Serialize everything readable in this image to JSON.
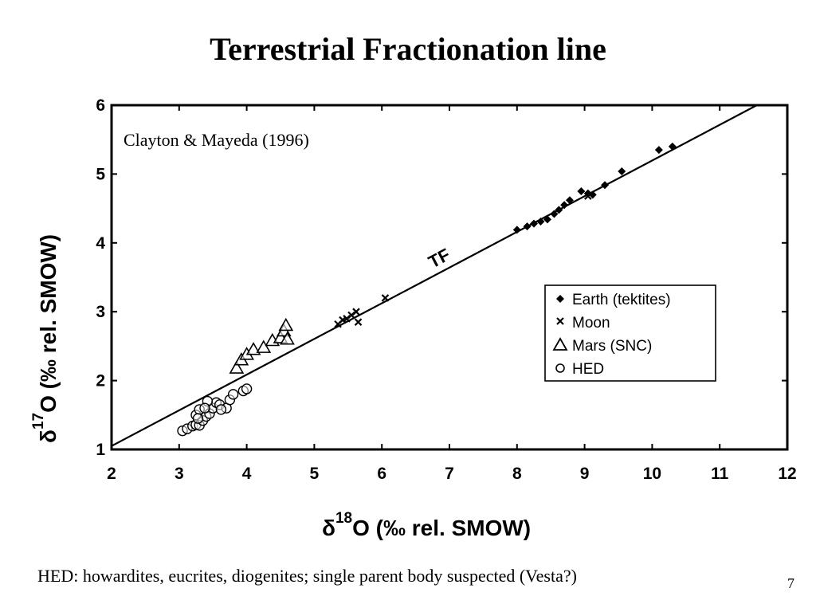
{
  "slide": {
    "title": "Terrestrial Fractionation line",
    "footnote": "HED: howardites, eucrites, diogenites; single parent body suspected (Vesta?)",
    "page_number": "7"
  },
  "chart_data": {
    "type": "scatter",
    "title": "",
    "annotation": "Clayton & Mayeda (1996)",
    "line_label": "TF",
    "xlabel": {
      "prefix": "δ",
      "sup": "18",
      "rest": "O (‰ rel. SMOW)"
    },
    "ylabel": {
      "prefix": "δ",
      "sup": "17",
      "rest": "O (‰ rel. SMOW)"
    },
    "xlim": [
      2,
      12
    ],
    "ylim": [
      1,
      6
    ],
    "xticks": [
      2,
      3,
      4,
      5,
      6,
      7,
      8,
      9,
      10,
      11,
      12
    ],
    "yticks": [
      1,
      2,
      3,
      4,
      5,
      6
    ],
    "grid": false,
    "legend_position": "right",
    "reference_line": {
      "name": "TF",
      "points": [
        [
          2,
          1.05
        ],
        [
          11.55,
          6
        ]
      ]
    },
    "series": [
      {
        "name": "Earth (tektites)",
        "marker": "diamond",
        "points": [
          [
            8.0,
            4.19
          ],
          [
            8.15,
            4.24
          ],
          [
            8.25,
            4.28
          ],
          [
            8.35,
            4.31
          ],
          [
            8.45,
            4.34
          ],
          [
            8.55,
            4.42
          ],
          [
            8.62,
            4.48
          ],
          [
            8.7,
            4.55
          ],
          [
            8.78,
            4.62
          ],
          [
            8.95,
            4.75
          ],
          [
            9.05,
            4.72
          ],
          [
            9.12,
            4.7
          ],
          [
            9.3,
            4.84
          ],
          [
            9.55,
            5.04
          ],
          [
            10.1,
            5.35
          ],
          [
            10.3,
            5.4
          ]
        ]
      },
      {
        "name": "Moon",
        "marker": "x",
        "points": [
          [
            5.35,
            2.82
          ],
          [
            5.42,
            2.88
          ],
          [
            5.48,
            2.9
          ],
          [
            5.55,
            2.95
          ],
          [
            5.62,
            3.0
          ],
          [
            5.65,
            2.85
          ],
          [
            6.05,
            3.2
          ],
          [
            9.05,
            4.68
          ]
        ]
      },
      {
        "name": "Mars (SNC)",
        "marker": "triangle",
        "points": [
          [
            3.85,
            2.18
          ],
          [
            3.92,
            2.3
          ],
          [
            4.0,
            2.38
          ],
          [
            4.1,
            2.45
          ],
          [
            4.25,
            2.48
          ],
          [
            4.38,
            2.58
          ],
          [
            4.5,
            2.62
          ],
          [
            4.55,
            2.72
          ],
          [
            4.58,
            2.8
          ],
          [
            4.6,
            2.6
          ]
        ]
      },
      {
        "name": "HED",
        "marker": "circle",
        "points": [
          [
            3.05,
            1.27
          ],
          [
            3.12,
            1.3
          ],
          [
            3.2,
            1.34
          ],
          [
            3.25,
            1.36
          ],
          [
            3.3,
            1.35
          ],
          [
            3.35,
            1.42
          ],
          [
            3.4,
            1.48
          ],
          [
            3.45,
            1.52
          ],
          [
            3.5,
            1.6
          ],
          [
            3.55,
            1.68
          ],
          [
            3.25,
            1.5
          ],
          [
            3.3,
            1.58
          ],
          [
            3.28,
            1.45
          ],
          [
            3.6,
            1.65
          ],
          [
            3.7,
            1.6
          ],
          [
            3.75,
            1.72
          ],
          [
            3.8,
            1.8
          ],
          [
            3.95,
            1.85
          ],
          [
            4.0,
            1.88
          ],
          [
            3.42,
            1.7
          ],
          [
            3.62,
            1.58
          ],
          [
            3.38,
            1.6
          ]
        ]
      }
    ]
  }
}
